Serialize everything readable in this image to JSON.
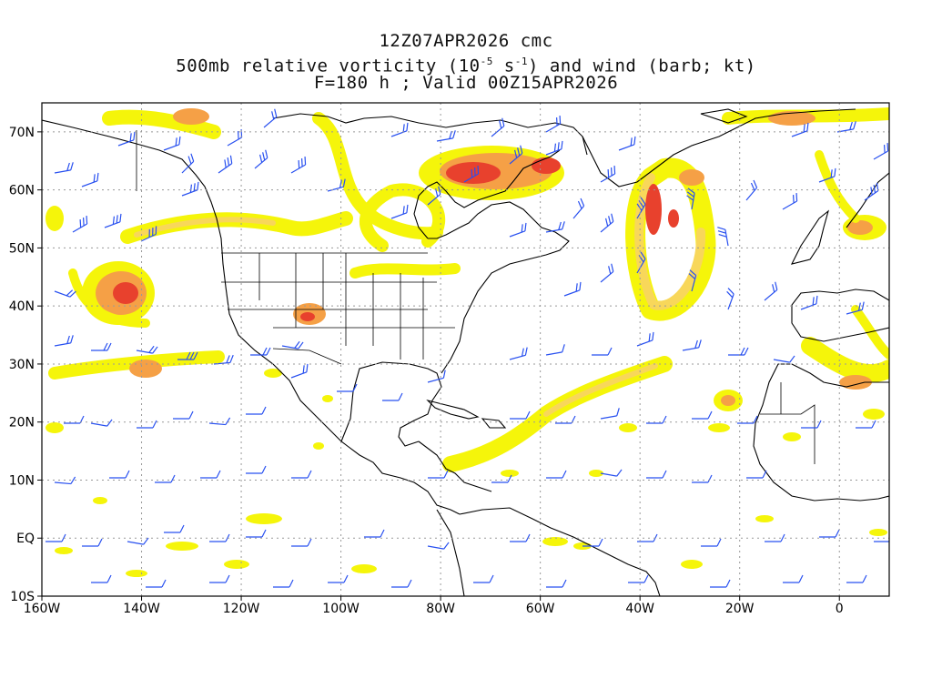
{
  "title": {
    "line1": "12Z07APR2026 cmc",
    "line2_prefix": "500mb relative vorticity (10",
    "line2_exp1": "-5",
    "line2_mid": " s",
    "line2_exp2": "-1",
    "line2_suffix": ") and wind (barb; kt)",
    "line3": "F=180 h ; Valid 00Z15APR2026"
  },
  "map": {
    "lon_range": [
      -160,
      10
    ],
    "lat_range": [
      -10,
      75
    ],
    "lat_labels": [
      {
        "lat": 70,
        "text": "70N"
      },
      {
        "lat": 60,
        "text": "60N"
      },
      {
        "lat": 50,
        "text": "50N"
      },
      {
        "lat": 40,
        "text": "40N"
      },
      {
        "lat": 30,
        "text": "30N"
      },
      {
        "lat": 20,
        "text": "20N"
      },
      {
        "lat": 10,
        "text": "10N"
      },
      {
        "lat": 0,
        "text": "EQ"
      },
      {
        "lat": -10,
        "text": "10S"
      }
    ],
    "lon_labels": [
      {
        "lon": -160,
        "text": "160W"
      },
      {
        "lon": -140,
        "text": "140W"
      },
      {
        "lon": -120,
        "text": "120W"
      },
      {
        "lon": -100,
        "text": "100W"
      },
      {
        "lon": -80,
        "text": "80W"
      },
      {
        "lon": -60,
        "text": "60W"
      },
      {
        "lon": -40,
        "text": "40W"
      },
      {
        "lon": -20,
        "text": "20W"
      },
      {
        "lon": 0,
        "text": "0"
      }
    ],
    "colors": {
      "shade_yellow": "#f5f50a",
      "shade_lightorange": "#f8d75a",
      "shade_orange": "#f5a046",
      "shade_red": "#e8412d",
      "shade_darkred": "#d2141e",
      "coast": "#000000",
      "barb": "#2850f0",
      "grid": "#999999"
    }
  }
}
